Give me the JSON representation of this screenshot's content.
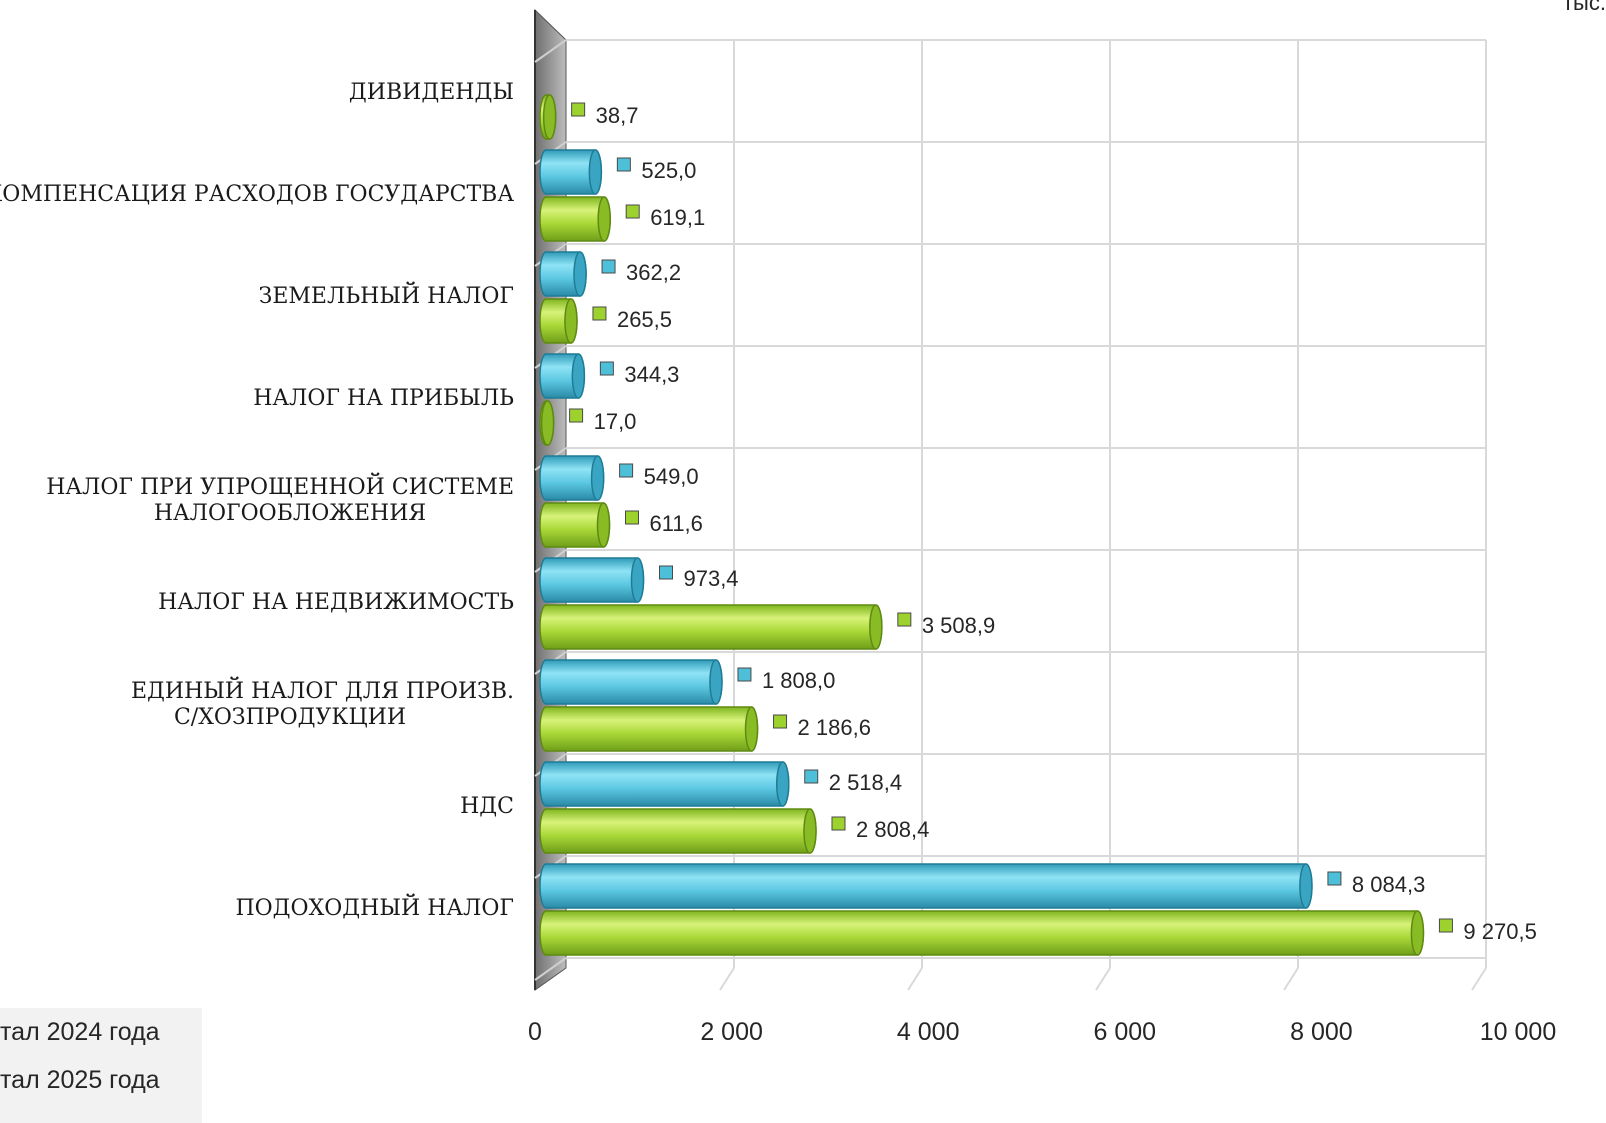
{
  "chart_data": {
    "type": "bar",
    "orientation": "horizontal",
    "corner_text": "тыс.",
    "categories": [
      [
        "ПОДОХОДНЫЙ НАЛОГ"
      ],
      [
        "НДС"
      ],
      [
        "ЕДИНЫЙ НАЛОГ ДЛЯ ПРОИЗВ.",
        "С/ХОЗПРОДУКЦИИ"
      ],
      [
        "НАЛОГ НА НЕДВИЖИМОСТЬ"
      ],
      [
        "НАЛОГ ПРИ УПРОЩЕННОЙ СИСТЕМЕ",
        "НАЛОГООБЛОЖЕНИЯ"
      ],
      [
        "НАЛОГ НА ПРИБЫЛЬ"
      ],
      [
        "ЗЕМЕЛЬНЫЙ НАЛОГ"
      ],
      [
        "КОМПЕНСАЦИЯ РАСХОДОВ ГОСУДАРСТВА"
      ],
      [
        "ДИВИДЕНДЫ"
      ]
    ],
    "series": [
      {
        "name": "тал 2024 года",
        "color": "#4dbfd9",
        "values": [
          8084.3,
          2518.4,
          1808.0,
          973.4,
          549.0,
          344.3,
          362.2,
          525.0,
          null
        ],
        "labels": [
          "8 084,3",
          "2 518,4",
          "1 808,0",
          "973,4",
          "549,0",
          "344,3",
          "362,2",
          "525,0",
          ""
        ]
      },
      {
        "name": "тал 2025 года",
        "color": "#9dd22e",
        "values": [
          9270.5,
          2808.4,
          2186.6,
          3508.9,
          611.6,
          17.0,
          265.5,
          619.1,
          38.7
        ],
        "labels": [
          "9 270,5",
          "2 808,4",
          "2 186,6",
          "3 508,9",
          "611,6",
          "17,0",
          "265,5",
          "619,1",
          "38,7"
        ]
      }
    ],
    "x_ticks": [
      0,
      2000,
      4000,
      6000,
      8000,
      10000
    ],
    "x_tick_labels": [
      "0",
      "2 000",
      "4 000",
      "6 000",
      "8 000",
      "10 000"
    ],
    "xlim": [
      0,
      10000
    ],
    "grid": true,
    "legend_position": "bottom-left"
  }
}
